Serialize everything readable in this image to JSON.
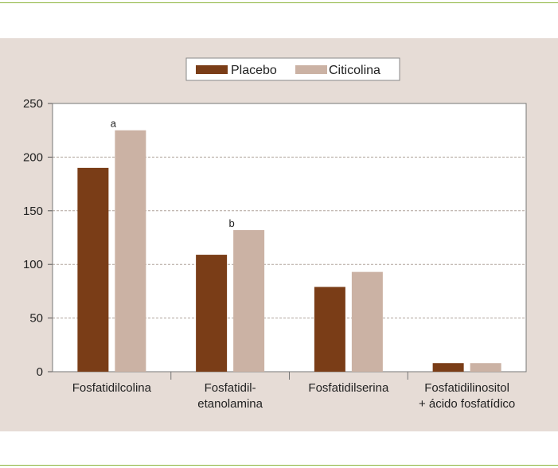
{
  "colors": {
    "panel_background": "#e6dcd6",
    "plot_background": "#ffffff",
    "accent_rule": "#8cb43c",
    "placebo": "#7a3d17",
    "citicolina": "#cbb2a4",
    "gridline": "#b0a49c"
  },
  "chart_data": {
    "type": "bar",
    "categories": [
      [
        "Fosfatidilcolina"
      ],
      [
        "Fosfatidil-",
        "etanolamina"
      ],
      [
        "Fosfatidilserina"
      ],
      [
        "Fosfatidilinositol",
        "+ ácido fosfatídico"
      ]
    ],
    "series": [
      {
        "name": "Placebo",
        "values": [
          190,
          109,
          79,
          8
        ]
      },
      {
        "name": "Citicolina",
        "values": [
          225,
          132,
          93,
          8
        ]
      }
    ],
    "annotations": [
      {
        "text": "a",
        "category_index": 0,
        "series_index": 1
      },
      {
        "text": "b",
        "category_index": 1,
        "series_index": 1
      }
    ],
    "ylim": [
      0,
      250
    ],
    "yticks": [
      0,
      50,
      100,
      150,
      200,
      250
    ],
    "grid": true,
    "legend_position": "top-center"
  }
}
